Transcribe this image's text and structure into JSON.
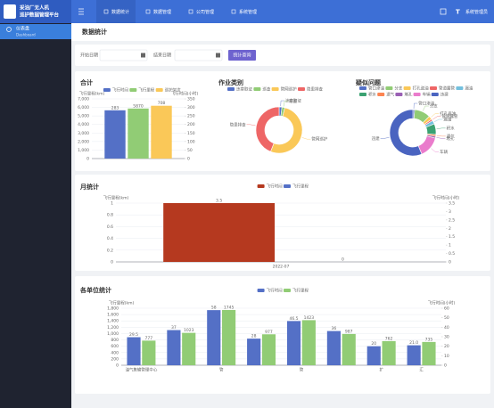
{
  "header": {
    "logo": [
      "采油厂无人机",
      "巡护数据管理平台"
    ],
    "nav": [
      "数据统计",
      "数据管理",
      "公司管理",
      "系统管理"
    ],
    "avatar": "T",
    "user": "系统管理员"
  },
  "sidebar": {
    "items": [
      {
        "label": "仪表盘",
        "sub": "Dashboard"
      }
    ]
  },
  "page_title": "数据统计",
  "filter": {
    "start_label": "开始日期",
    "end_label": "结束日期",
    "button": "统计查询"
  },
  "chart_data": [
    {
      "type": "bar",
      "title": "合计",
      "categories": [
        null
      ],
      "series": [
        {
          "name": "飞行时间",
          "color": "#5470c6",
          "values": [
            283
          ],
          "axis": "y2"
        },
        {
          "name": "飞行里程",
          "color": "#91cc75",
          "values": [
            5870
          ],
          "axis": "y"
        },
        {
          "name": "巡护架次",
          "color": "#fac858",
          "values": [
            708
          ],
          "axis": "y3"
        }
      ],
      "y_label": "飞行里程(km)",
      "y2_label": "飞行时间(小时)",
      "ylim": [
        0,
        7000
      ],
      "yticks": [
        0,
        {
          "value": 1000,
          "label": "1,000"
        },
        {
          "value": 2000,
          "label": "2,000"
        },
        {
          "value": 3000,
          "label": "3,000"
        },
        {
          "value": 4000,
          "label": "4,000"
        },
        {
          "value": 5000,
          "label": "5,000"
        },
        {
          "value": 6000,
          "label": "6,000"
        },
        {
          "value": 7000,
          "label": "7,000"
        }
      ],
      "y2lim": [
        0,
        350
      ],
      "y2ticks": [
        0,
        50,
        100,
        150,
        200,
        250,
        300,
        350
      ],
      "y3lim": [
        0,
        800
      ],
      "grid": true
    },
    {
      "type": "pie",
      "title": "作业类别",
      "categories": [
        "违章取证",
        "巡查",
        "管网巡护",
        "隐患排查"
      ],
      "values": [
        2,
        2,
        52,
        44
      ],
      "colors": [
        "#5470c6",
        "#91cc75",
        "#fac858",
        "#ee6666"
      ]
    },
    {
      "type": "pie",
      "title": "疑似问题",
      "categories": [
        "管口渗油",
        "分支",
        "打孔盗油",
        "管道露管",
        "漏油",
        "积水",
        "遗气",
        "堵孔",
        "车辆",
        "违建"
      ],
      "values": [
        1,
        9,
        2,
        1,
        2,
        6,
        1,
        1,
        12,
        45
      ],
      "colors": [
        "#5470c6",
        "#91cc75",
        "#fac858",
        "#ee6666",
        "#73c0de",
        "#3ba272",
        "#fc8452",
        "#9a60b4",
        "#ea7ccc",
        "#4a64c0"
      ]
    },
    {
      "type": "bar",
      "title": "月统计",
      "categories": [
        "2022-07"
      ],
      "series": [
        {
          "name": "飞行时间",
          "color": "#b5391f",
          "values": [
            3.5
          ],
          "axis": "y2"
        },
        {
          "name": "飞行里程",
          "color": "#5470c6",
          "values": [
            0
          ],
          "axis": "y"
        }
      ],
      "y_label": "飞行里程(km)",
      "y2_label": "飞行时间(小时)",
      "ylim": [
        0,
        1
      ],
      "yticks": [
        0,
        0.2,
        0.4,
        0.6,
        0.8,
        1
      ],
      "y2lim": [
        0,
        3.5
      ],
      "y2ticks": [
        0,
        0.5,
        1,
        1.5,
        2,
        2.5,
        3,
        3.5
      ],
      "grid": true
    },
    {
      "type": "bar",
      "title": "各单位统计",
      "categories": [
        "油气集输管理中心",
        null,
        "管",
        null,
        "管",
        null,
        "扩",
        "汇"
      ],
      "series": [
        {
          "name": "飞行时间",
          "color": "#5470c6",
          "values": [
            29.5,
            37,
            58,
            28,
            46.5,
            36,
            20,
            21
          ],
          "value_labels": [
            "29.5",
            "37",
            "58",
            "28",
            "46.5",
            "36",
            "20",
            "21.0"
          ],
          "axis": "y2"
        },
        {
          "name": "飞行里程",
          "color": "#91cc75",
          "values": [
            777,
            1023,
            1745,
            977,
            1423,
            987,
            762,
            735
          ],
          "axis": "y"
        }
      ],
      "y_label": "飞行里程(km)",
      "y2_label": "飞行时间(小时)",
      "ylim": [
        0,
        1800
      ],
      "yticks": [
        0,
        200,
        400,
        600,
        800,
        {
          "value": 1000,
          "label": "1,000"
        },
        {
          "value": 1200,
          "label": "1,200"
        },
        {
          "value": 1400,
          "label": "1,400"
        },
        {
          "value": 1600,
          "label": "1,600"
        },
        {
          "value": 1800,
          "label": "1,800"
        }
      ],
      "y2lim": [
        0,
        60
      ],
      "y2ticks": [
        0,
        10,
        20,
        30,
        40,
        50,
        60
      ],
      "grid": true
    }
  ]
}
